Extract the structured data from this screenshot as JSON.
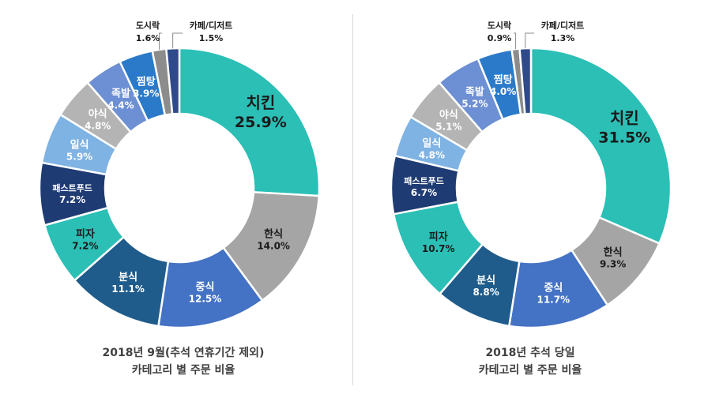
{
  "chart_data": [
    {
      "type": "pie",
      "title_lines": [
        "2018년 9월(추석 연휴기간 제외)",
        "카테고리 별 주문 비율"
      ],
      "slices": [
        {
          "label": "치킨",
          "value": 25.9,
          "value_text": "25.9%",
          "color": "#2bbfb6",
          "text_color": "#1a1a1a"
        },
        {
          "label": "한식",
          "value": 14.0,
          "value_text": "14.0%",
          "color": "#a5a5a5",
          "text_color": "#1a1a1a"
        },
        {
          "label": "중식",
          "value": 12.5,
          "value_text": "12.5%",
          "color": "#4472c4",
          "text_color": "#ffffff"
        },
        {
          "label": "분식",
          "value": 11.1,
          "value_text": "11.1%",
          "color": "#1f5c8b",
          "text_color": "#ffffff"
        },
        {
          "label": "피자",
          "value": 7.2,
          "value_text": "7.2%",
          "color": "#2bbfb6",
          "text_color": "#1a1a1a"
        },
        {
          "label": "패스트푸드",
          "value": 7.2,
          "value_text": "7.2%",
          "color": "#1f3b73",
          "text_color": "#ffffff"
        },
        {
          "label": "일식",
          "value": 5.9,
          "value_text": "5.9%",
          "color": "#7fb3e3",
          "text_color": "#ffffff"
        },
        {
          "label": "야식",
          "value": 4.8,
          "value_text": "4.8%",
          "color": "#b4b4b4",
          "text_color": "#ffffff"
        },
        {
          "label": "족발",
          "value": 4.4,
          "value_text": "4.4%",
          "color": "#6d8fd3",
          "text_color": "#ffffff"
        },
        {
          "label": "찜탕",
          "value": 3.9,
          "value_text": "3.9%",
          "color": "#2a7ac9",
          "text_color": "#ffffff"
        },
        {
          "label": "도시락",
          "value": 1.6,
          "value_text": "1.6%",
          "color": "#8c8c8c",
          "text_color": "#1a1a1a"
        },
        {
          "label": "카페/디저트",
          "value": 1.5,
          "value_text": "1.5%",
          "color": "#2e4a8a",
          "text_color": "#1a1a1a"
        }
      ]
    },
    {
      "type": "pie",
      "title_lines": [
        "2018년 추석 당일",
        "카테고리 별 주문 비율"
      ],
      "slices": [
        {
          "label": "치킨",
          "value": 31.5,
          "value_text": "31.5%",
          "color": "#2bbfb6",
          "text_color": "#1a1a1a"
        },
        {
          "label": "한식",
          "value": 9.3,
          "value_text": "9.3%",
          "color": "#a5a5a5",
          "text_color": "#1a1a1a"
        },
        {
          "label": "중식",
          "value": 11.7,
          "value_text": "11.7%",
          "color": "#4472c4",
          "text_color": "#ffffff"
        },
        {
          "label": "분식",
          "value": 8.8,
          "value_text": "8.8%",
          "color": "#1f5c8b",
          "text_color": "#ffffff"
        },
        {
          "label": "피자",
          "value": 10.7,
          "value_text": "10.7%",
          "color": "#2bbfb6",
          "text_color": "#1a1a1a"
        },
        {
          "label": "패스트푸드",
          "value": 6.7,
          "value_text": "6.7%",
          "color": "#1f3b73",
          "text_color": "#ffffff"
        },
        {
          "label": "일식",
          "value": 4.8,
          "value_text": "4.8%",
          "color": "#7fb3e3",
          "text_color": "#ffffff"
        },
        {
          "label": "야식",
          "value": 5.1,
          "value_text": "5.1%",
          "color": "#b4b4b4",
          "text_color": "#ffffff"
        },
        {
          "label": "족발",
          "value": 5.2,
          "value_text": "5.2%",
          "color": "#6d8fd3",
          "text_color": "#ffffff"
        },
        {
          "label": "찜탕",
          "value": 4.0,
          "value_text": "4.0%",
          "color": "#2a7ac9",
          "text_color": "#ffffff"
        },
        {
          "label": "도시락",
          "value": 0.9,
          "value_text": "0.9%",
          "color": "#8c8c8c",
          "text_color": "#1a1a1a"
        },
        {
          "label": "카페/디저트",
          "value": 1.3,
          "value_text": "1.3%",
          "color": "#2e4a8a",
          "text_color": "#1a1a1a"
        }
      ]
    }
  ]
}
